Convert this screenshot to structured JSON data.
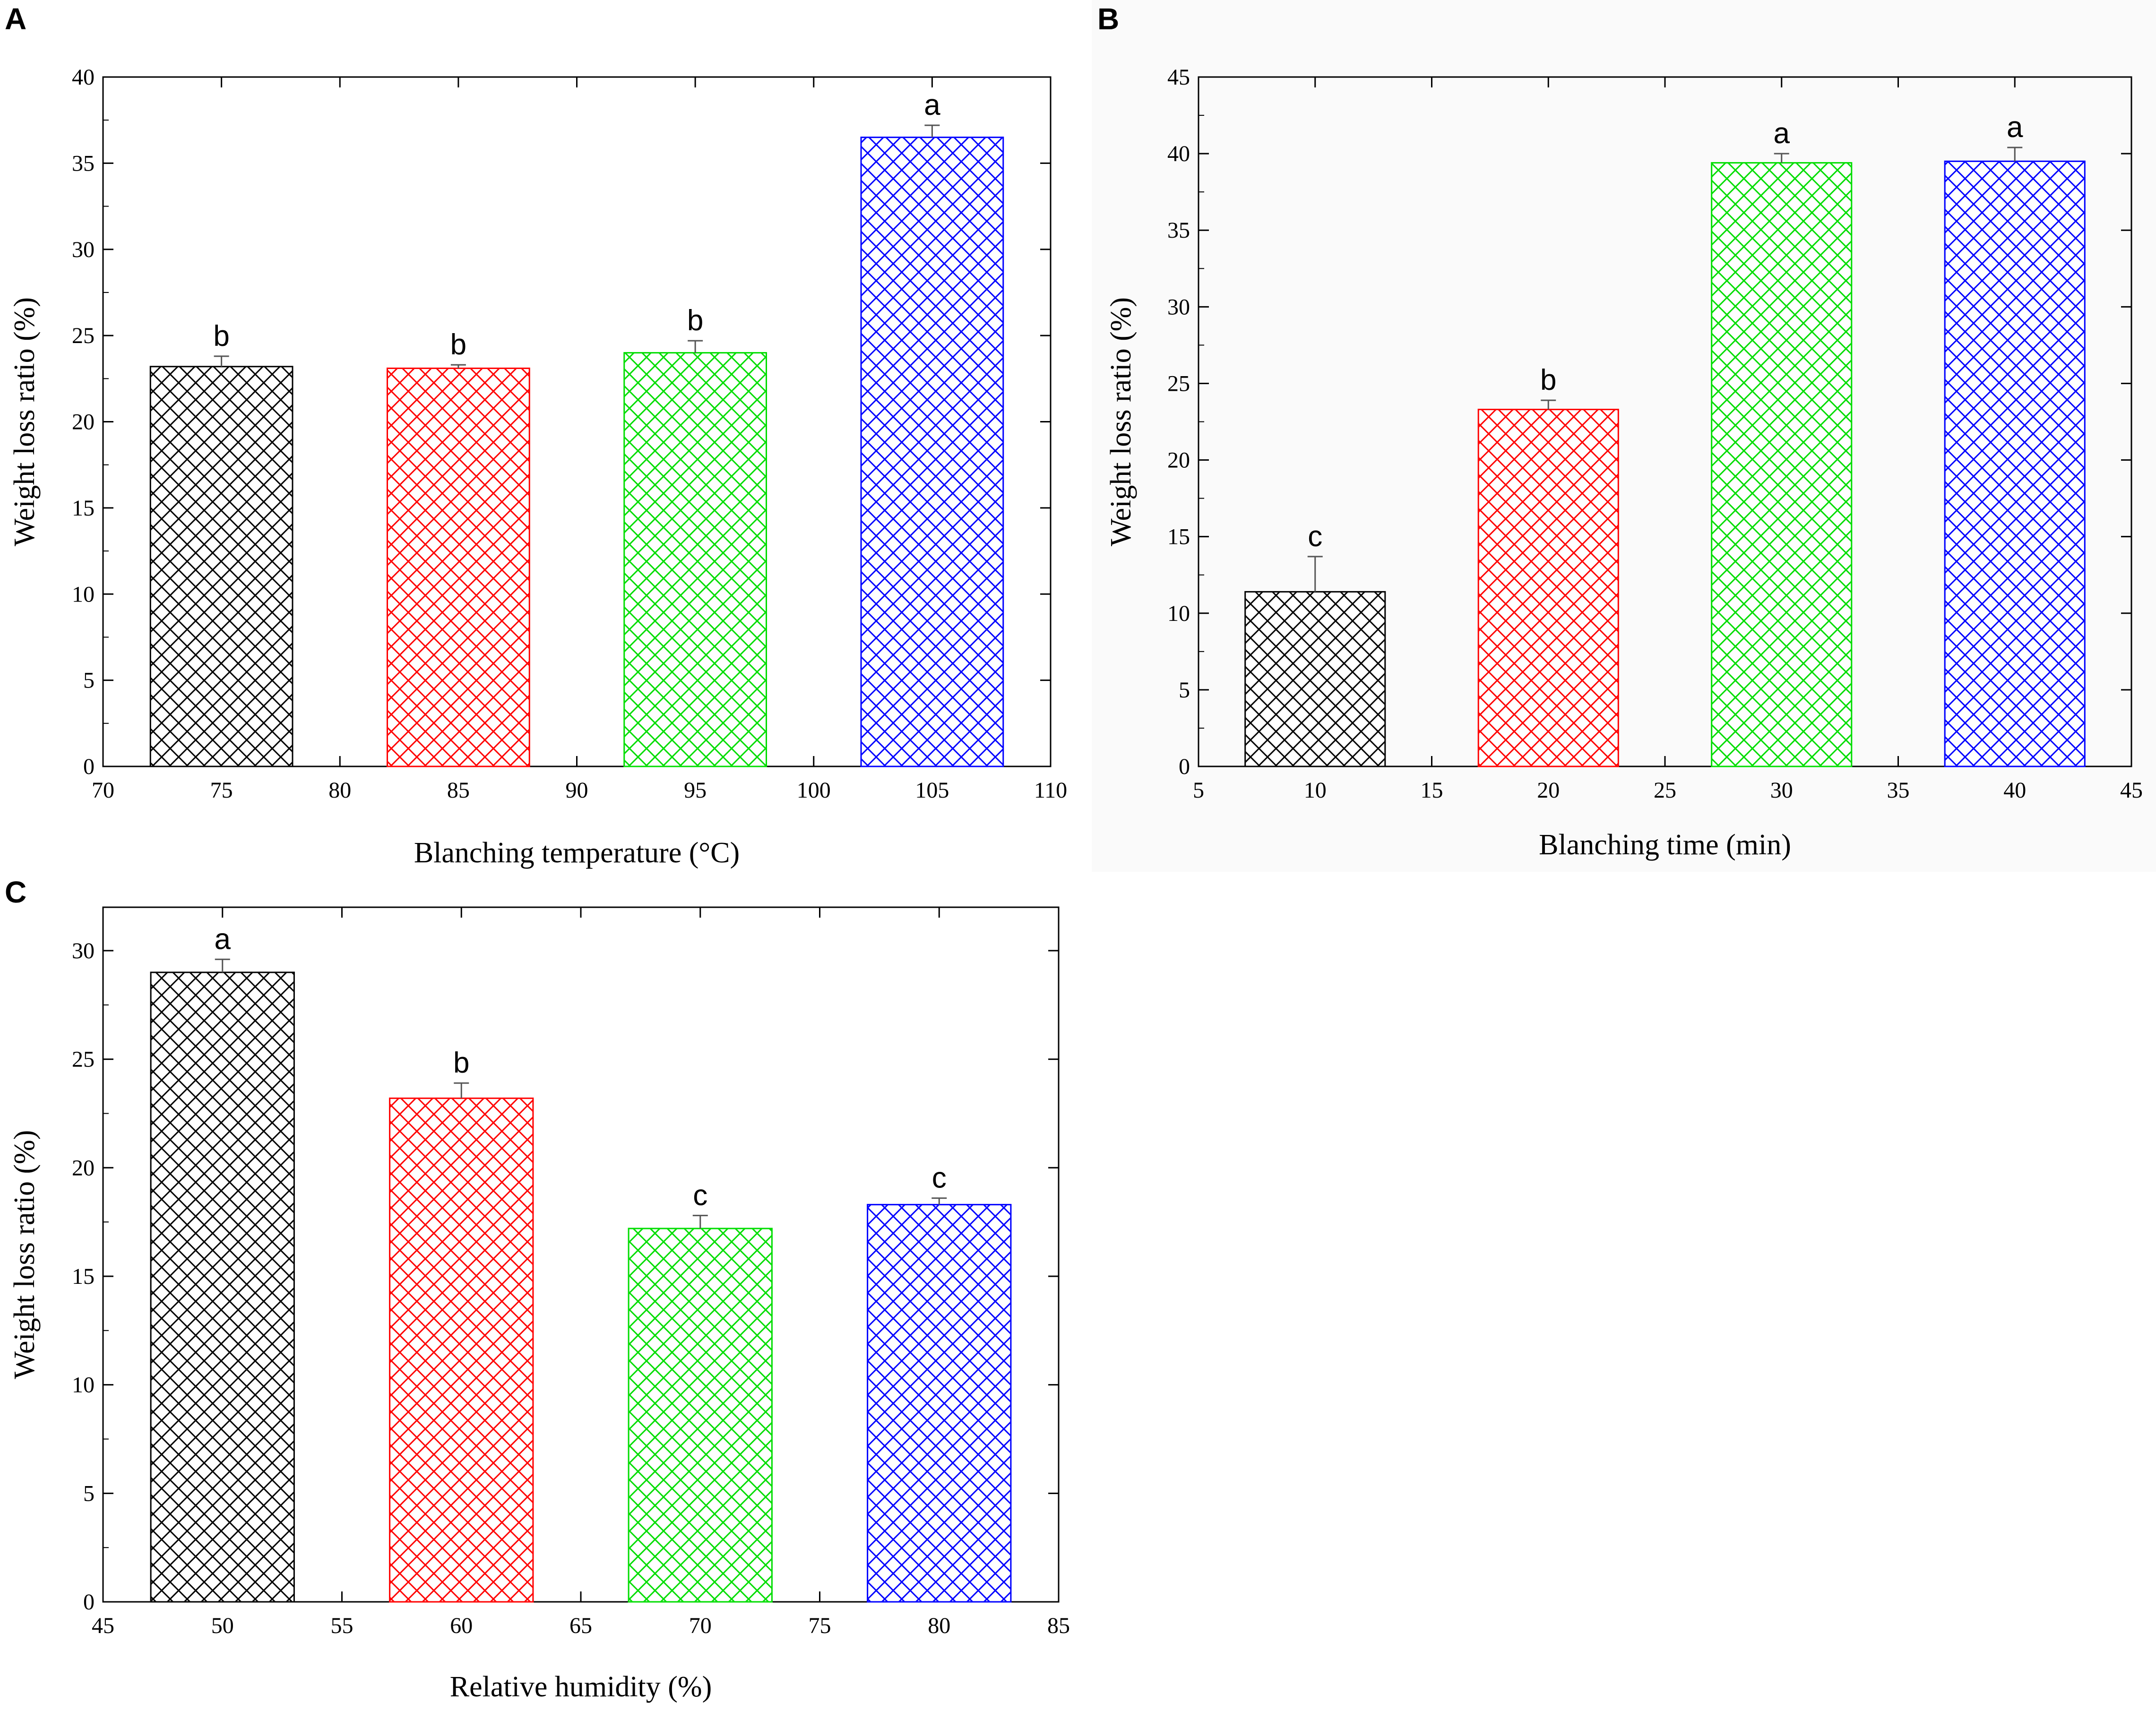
{
  "chart_data": [
    {
      "panel": "A",
      "type": "bar",
      "xlabel": "Blanching temperature (°C)",
      "ylabel": "Weight loss ratio (%)",
      "xlim": [
        70,
        110
      ],
      "ylim": [
        0,
        40
      ],
      "xticks": [
        "70",
        "75",
        "80",
        "85",
        "90",
        "95",
        "100",
        "105",
        "110"
      ],
      "yticks": [
        "0",
        "5",
        "10",
        "15",
        "20",
        "25",
        "30",
        "35",
        "40"
      ],
      "bars": [
        {
          "x": 75,
          "value": 23.2,
          "error": 0.6,
          "label": "b",
          "color": "#000000"
        },
        {
          "x": 85,
          "value": 23.1,
          "error": 0.2,
          "label": "b",
          "color": "#ff0000"
        },
        {
          "x": 95,
          "value": 24.0,
          "error": 0.7,
          "label": "b",
          "color": "#00dd00"
        },
        {
          "x": 105,
          "value": 36.5,
          "error": 0.7,
          "label": "a",
          "color": "#0000ff"
        }
      ]
    },
    {
      "panel": "B",
      "type": "bar",
      "xlabel": "Blanching time (min)",
      "ylabel": "Weight loss ratio (%)",
      "xlim": [
        5,
        45
      ],
      "ylim": [
        0,
        45
      ],
      "xticks": [
        "5",
        "10",
        "15",
        "20",
        "25",
        "30",
        "35",
        "40",
        "45"
      ],
      "yticks": [
        "0",
        "5",
        "10",
        "15",
        "20",
        "25",
        "30",
        "35",
        "40",
        "45"
      ],
      "bars": [
        {
          "x": 10,
          "value": 11.4,
          "error": 2.3,
          "label": "c",
          "color": "#000000"
        },
        {
          "x": 20,
          "value": 23.3,
          "error": 0.6,
          "label": "b",
          "color": "#ff0000"
        },
        {
          "x": 30,
          "value": 39.4,
          "error": 0.6,
          "label": "a",
          "color": "#00dd00"
        },
        {
          "x": 40,
          "value": 39.5,
          "error": 0.9,
          "label": "a",
          "color": "#0000ff"
        }
      ]
    },
    {
      "panel": "C",
      "type": "bar",
      "xlabel": "Relative humidity (%)",
      "ylabel": "Weight loss ratio (%)",
      "xlim": [
        45,
        85
      ],
      "ylim": [
        0,
        32
      ],
      "xticks": [
        "45",
        "50",
        "55",
        "60",
        "65",
        "70",
        "75",
        "80",
        "85"
      ],
      "yticks": [
        "0",
        "5",
        "10",
        "15",
        "20",
        "25",
        "30"
      ],
      "bars": [
        {
          "x": 50,
          "value": 29.0,
          "error": 0.6,
          "label": "a",
          "color": "#000000"
        },
        {
          "x": 60,
          "value": 23.2,
          "error": 0.7,
          "label": "b",
          "color": "#ff0000"
        },
        {
          "x": 70,
          "value": 17.2,
          "error": 0.6,
          "label": "c",
          "color": "#00dd00"
        },
        {
          "x": 80,
          "value": 18.3,
          "error": 0.3,
          "label": "c",
          "color": "#0000ff"
        }
      ]
    }
  ]
}
